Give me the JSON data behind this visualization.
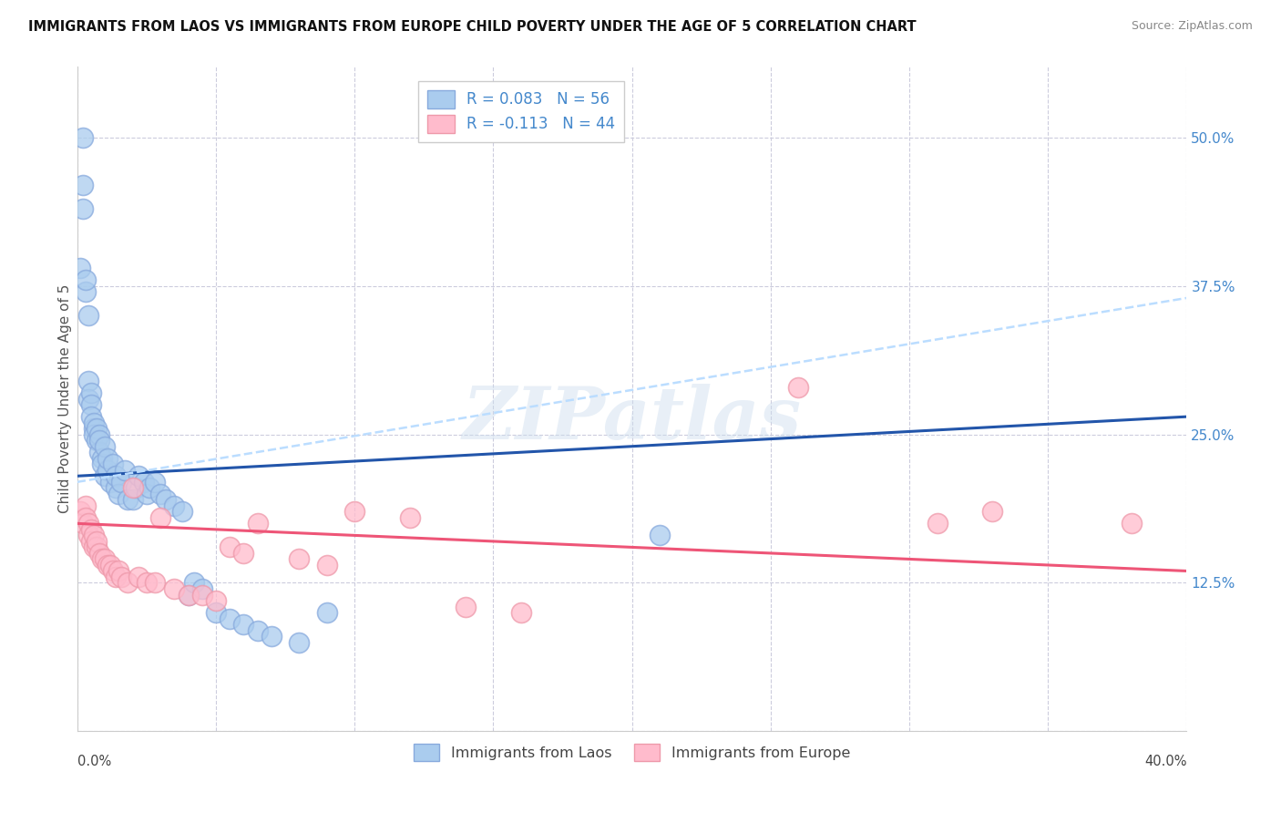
{
  "title": "IMMIGRANTS FROM LAOS VS IMMIGRANTS FROM EUROPE CHILD POVERTY UNDER THE AGE OF 5 CORRELATION CHART",
  "source": "Source: ZipAtlas.com",
  "ylabel": "Child Poverty Under the Age of 5",
  "xmin": 0.0,
  "xmax": 0.4,
  "ymin": 0.0,
  "ymax": 0.56,
  "yticks": [
    0.0,
    0.125,
    0.25,
    0.375,
    0.5
  ],
  "ytick_labels": [
    "",
    "12.5%",
    "25.0%",
    "37.5%",
    "50.0%"
  ],
  "laos_color": "#aaccee",
  "europe_color": "#ffbbcc",
  "laos_edge": "#88aadd",
  "europe_edge": "#ee99aa",
  "trend_laos_color": "#2255aa",
  "trend_europe_color": "#ee5577",
  "trend_dashed_color": "#bbddff",
  "watermark": "ZIPatlas",
  "legend_text_color": "#4488cc",
  "laos_x": [
    0.001,
    0.002,
    0.002,
    0.003,
    0.003,
    0.004,
    0.004,
    0.004,
    0.005,
    0.005,
    0.005,
    0.006,
    0.006,
    0.006,
    0.007,
    0.007,
    0.008,
    0.008,
    0.008,
    0.009,
    0.009,
    0.01,
    0.01,
    0.011,
    0.011,
    0.012,
    0.013,
    0.014,
    0.014,
    0.015,
    0.016,
    0.017,
    0.018,
    0.02,
    0.021,
    0.022,
    0.024,
    0.025,
    0.026,
    0.028,
    0.03,
    0.032,
    0.035,
    0.038,
    0.04,
    0.042,
    0.045,
    0.05,
    0.055,
    0.06,
    0.065,
    0.07,
    0.08,
    0.09,
    0.21,
    0.002
  ],
  "laos_y": [
    0.39,
    0.46,
    0.44,
    0.37,
    0.38,
    0.35,
    0.295,
    0.28,
    0.285,
    0.275,
    0.265,
    0.255,
    0.26,
    0.25,
    0.245,
    0.255,
    0.25,
    0.235,
    0.245,
    0.23,
    0.225,
    0.24,
    0.215,
    0.22,
    0.23,
    0.21,
    0.225,
    0.205,
    0.215,
    0.2,
    0.21,
    0.22,
    0.195,
    0.195,
    0.205,
    0.215,
    0.21,
    0.2,
    0.205,
    0.21,
    0.2,
    0.195,
    0.19,
    0.185,
    0.115,
    0.125,
    0.12,
    0.1,
    0.095,
    0.09,
    0.085,
    0.08,
    0.075,
    0.1,
    0.165,
    0.5
  ],
  "europe_x": [
    0.001,
    0.002,
    0.003,
    0.003,
    0.004,
    0.004,
    0.005,
    0.005,
    0.006,
    0.006,
    0.007,
    0.007,
    0.008,
    0.009,
    0.01,
    0.011,
    0.012,
    0.013,
    0.014,
    0.015,
    0.016,
    0.018,
    0.02,
    0.022,
    0.025,
    0.028,
    0.03,
    0.035,
    0.04,
    0.045,
    0.05,
    0.055,
    0.06,
    0.065,
    0.08,
    0.09,
    0.1,
    0.12,
    0.14,
    0.16,
    0.26,
    0.31,
    0.33,
    0.38
  ],
  "europe_y": [
    0.185,
    0.175,
    0.19,
    0.18,
    0.175,
    0.165,
    0.17,
    0.16,
    0.155,
    0.165,
    0.155,
    0.16,
    0.15,
    0.145,
    0.145,
    0.14,
    0.14,
    0.135,
    0.13,
    0.135,
    0.13,
    0.125,
    0.205,
    0.13,
    0.125,
    0.125,
    0.18,
    0.12,
    0.115,
    0.115,
    0.11,
    0.155,
    0.15,
    0.175,
    0.145,
    0.14,
    0.185,
    0.18,
    0.105,
    0.1,
    0.29,
    0.175,
    0.185,
    0.175
  ],
  "trend_laos_x0": 0.0,
  "trend_laos_y0": 0.215,
  "trend_laos_x1": 0.4,
  "trend_laos_y1": 0.265,
  "trend_europe_x0": 0.0,
  "trend_europe_y0": 0.175,
  "trend_europe_x1": 0.4,
  "trend_europe_y1": 0.135,
  "trend_dashed_x0": 0.0,
  "trend_dashed_y0": 0.21,
  "trend_dashed_x1": 0.4,
  "trend_dashed_y1": 0.365
}
